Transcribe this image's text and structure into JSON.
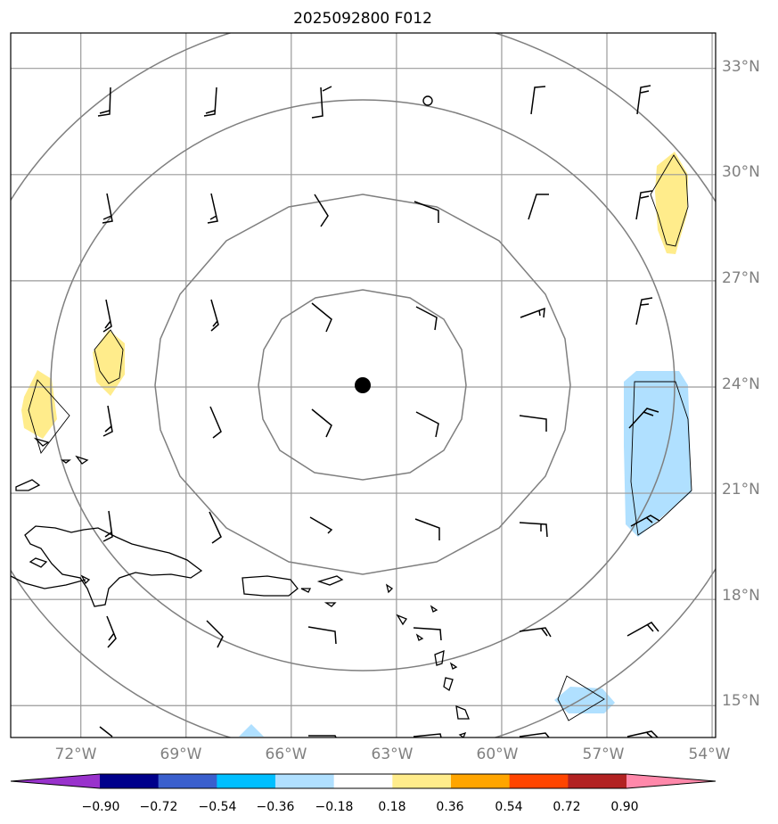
{
  "title": "2025092800 F012",
  "axes": {
    "lon_labels": [
      "72°W",
      "69°W",
      "66°W",
      "63°W",
      "60°W",
      "57°W",
      "54°W"
    ],
    "lon_values": [
      -72,
      -69,
      -66,
      -63,
      -60,
      -57,
      -54
    ],
    "lat_labels": [
      "33°N",
      "30°N",
      "27°N",
      "24°N",
      "21°N",
      "18°N",
      "15°N"
    ],
    "lat_values": [
      33,
      30,
      27,
      24,
      21,
      18,
      15
    ],
    "lon_range": [
      -74.0,
      -53.9
    ],
    "lat_range": [
      14.1,
      34.0
    ],
    "gridlines": true
  },
  "center": {
    "lon": -63.9,
    "lat": 24.0
  },
  "range_rings": [
    "ring-1",
    "ring-2",
    "ring-3",
    "ring-4"
  ],
  "colorbar": {
    "tick_labels": [
      "−0.90",
      "−0.72",
      "−0.54",
      "−0.36",
      "−0.18",
      "0.18",
      "0.36",
      "0.54",
      "0.72",
      "0.90"
    ],
    "colors": [
      "#9932cc",
      "#00008b",
      "#3a5fcd",
      "#00bfff",
      "#b0e0ff",
      "#ffffff",
      "#ffec8b",
      "#ffa500",
      "#ff4500",
      "#b22222",
      "#ff88aa"
    ],
    "extend": "both"
  },
  "map_colors": {
    "grid": "#9a9a9a",
    "ring": "#7f7f7f",
    "coast": "#000000",
    "positive": "#ffec8b",
    "negative": "#b0e0ff"
  }
}
